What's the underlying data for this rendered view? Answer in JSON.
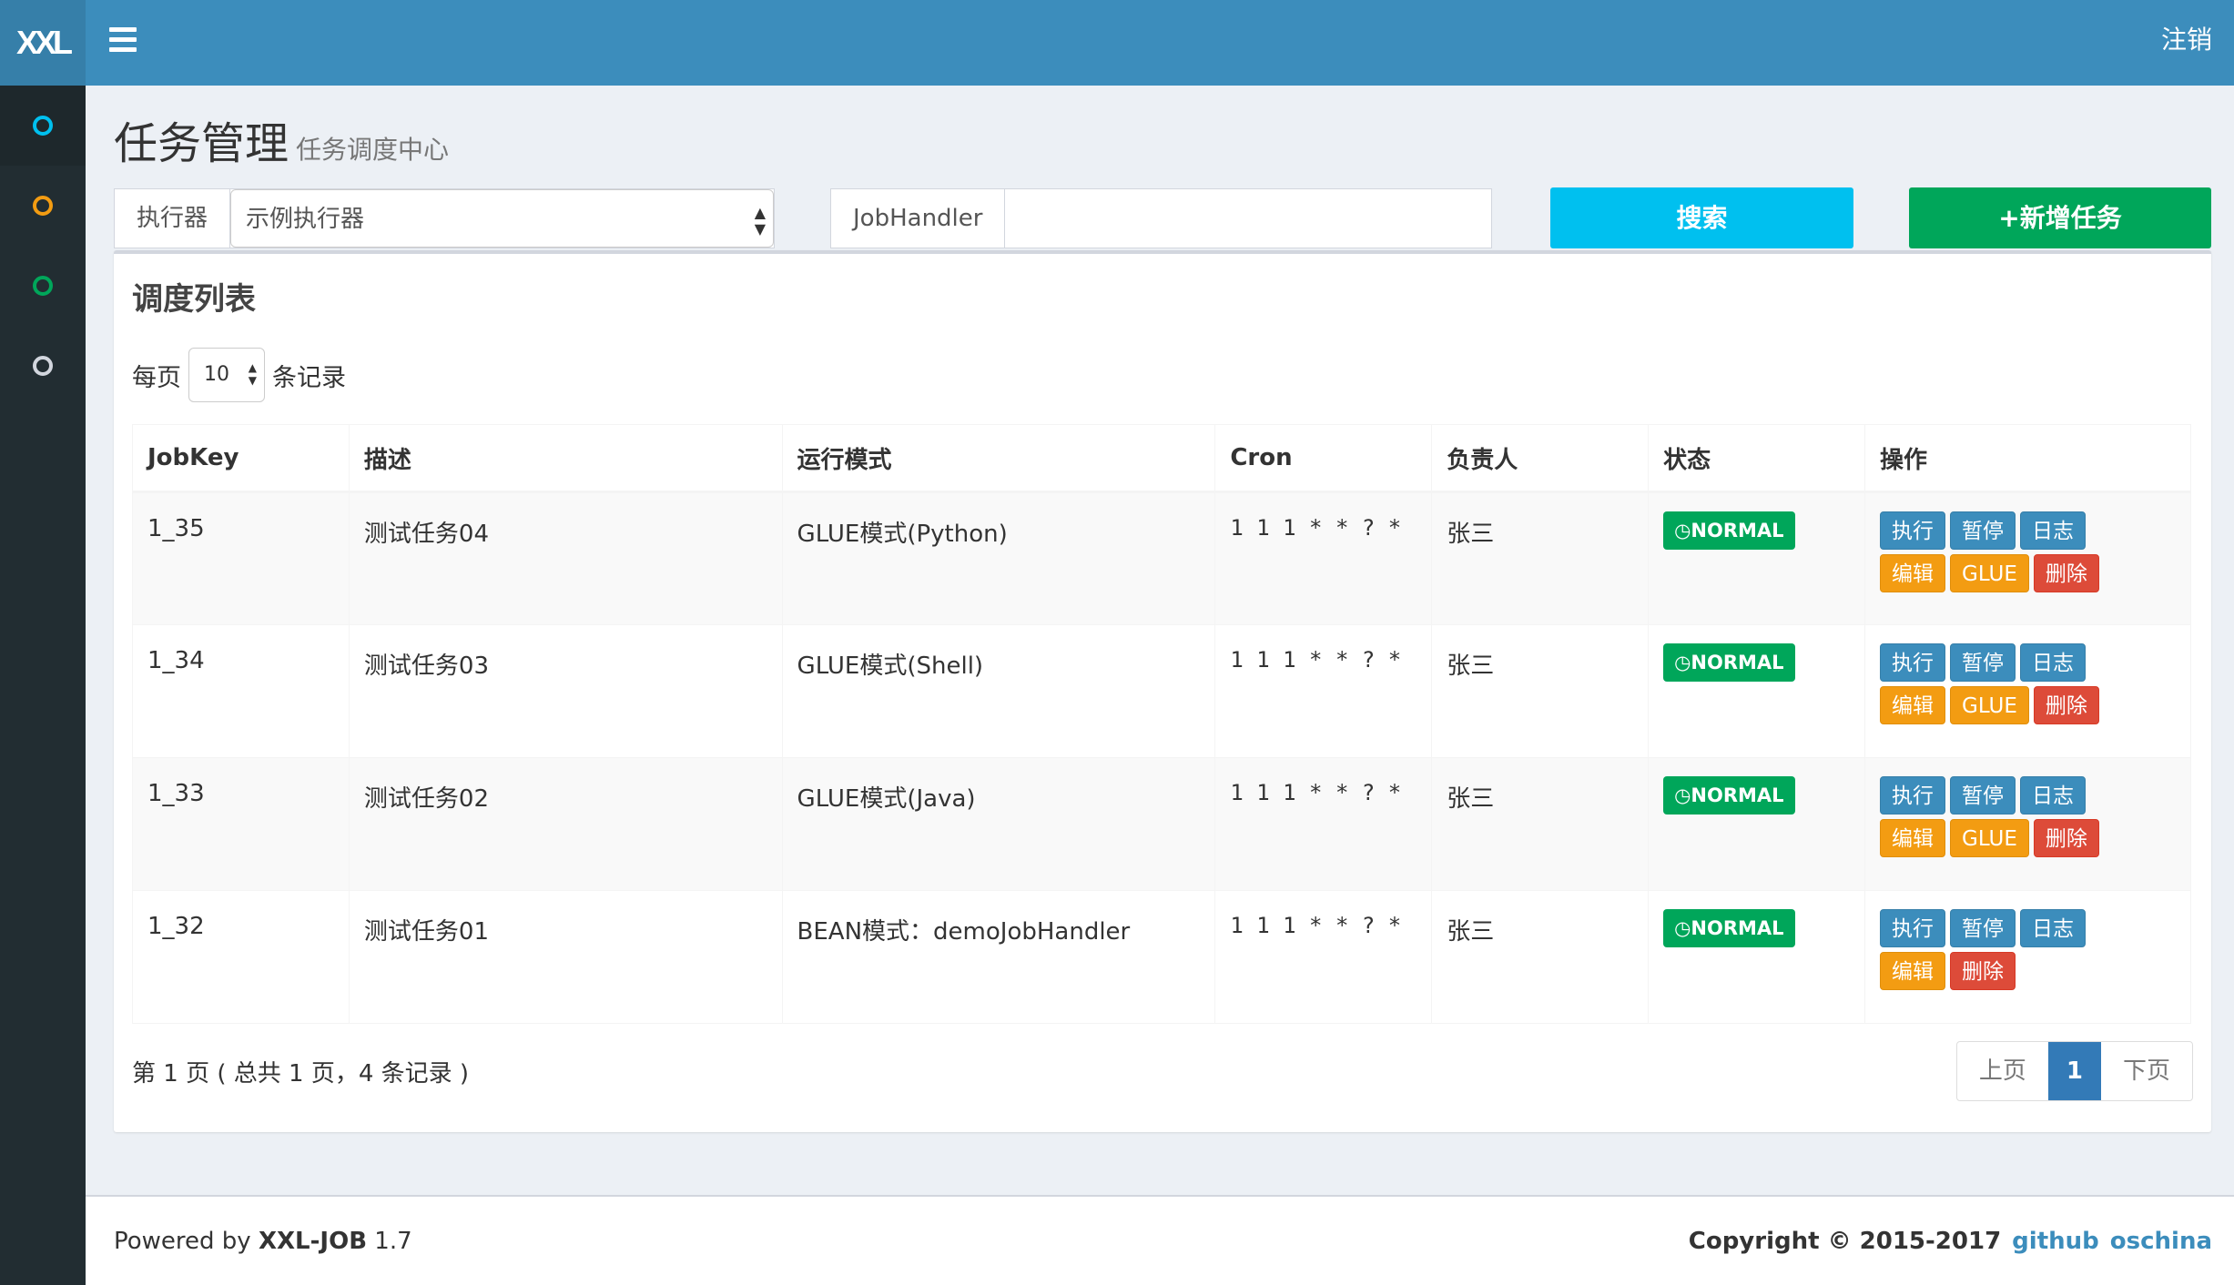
{
  "header": {
    "logo": "XXL",
    "logout": "注销"
  },
  "sidebar": {
    "items": [
      {
        "icon": "circle-icon",
        "color": "#00c0ef"
      },
      {
        "icon": "circle-icon",
        "color": "#f39c12"
      },
      {
        "icon": "circle-icon",
        "color": "#00a65a"
      },
      {
        "icon": "circle-icon",
        "color": "#d2d6de"
      }
    ]
  },
  "page": {
    "title": "任务管理",
    "subtitle": "任务调度中心"
  },
  "filters": {
    "executor_label": "执行器",
    "executor_value": "示例执行器",
    "jobhandler_label": "JobHandler",
    "jobhandler_value": "",
    "search": "搜索",
    "add": "+新增任务"
  },
  "box": {
    "title": "调度列表",
    "per_page_prefix": "每页",
    "per_page": "10",
    "per_page_suffix": "条记录"
  },
  "table": {
    "columns": [
      "JobKey",
      "描述",
      "运行模式",
      "Cron",
      "负责人",
      "状态",
      "操作"
    ],
    "rows": [
      {
        "key": "1_35",
        "desc": "测试任务04",
        "mode": "GLUE模式(Python)",
        "cron": "1 1 1 * * ? *",
        "owner": "张三",
        "status": "NORMAL",
        "ops": [
          "执行",
          "暂停",
          "日志",
          "编辑",
          "GLUE",
          "删除"
        ]
      },
      {
        "key": "1_34",
        "desc": "测试任务03",
        "mode": "GLUE模式(Shell)",
        "cron": "1 1 1 * * ? *",
        "owner": "张三",
        "status": "NORMAL",
        "ops": [
          "执行",
          "暂停",
          "日志",
          "编辑",
          "GLUE",
          "删除"
        ]
      },
      {
        "key": "1_33",
        "desc": "测试任务02",
        "mode": "GLUE模式(Java)",
        "cron": "1 1 1 * * ? *",
        "owner": "张三",
        "status": "NORMAL",
        "ops": [
          "执行",
          "暂停",
          "日志",
          "编辑",
          "GLUE",
          "删除"
        ]
      },
      {
        "key": "1_32",
        "desc": "测试任务01",
        "mode": "BEAN模式：demoJobHandler",
        "cron": "1 1 1 * * ? *",
        "owner": "张三",
        "status": "NORMAL",
        "ops": [
          "执行",
          "暂停",
          "日志",
          "编辑",
          "删除"
        ]
      }
    ]
  },
  "pagination": {
    "info": "第 1 页 ( 总共 1 页，4 条记录 )",
    "prev": "上页",
    "current": "1",
    "next": "下页"
  },
  "footer": {
    "powered_prefix": "Powered by",
    "product": "XXL-JOB",
    "version": "1.7",
    "copyright": "Copyright © 2015-2017",
    "github": "github",
    "oschina": "oschina"
  },
  "colors": {
    "header": "#3c8dbc",
    "sidebar": "#222d32",
    "success": "#00a65a",
    "info": "#00c0ef"
  }
}
